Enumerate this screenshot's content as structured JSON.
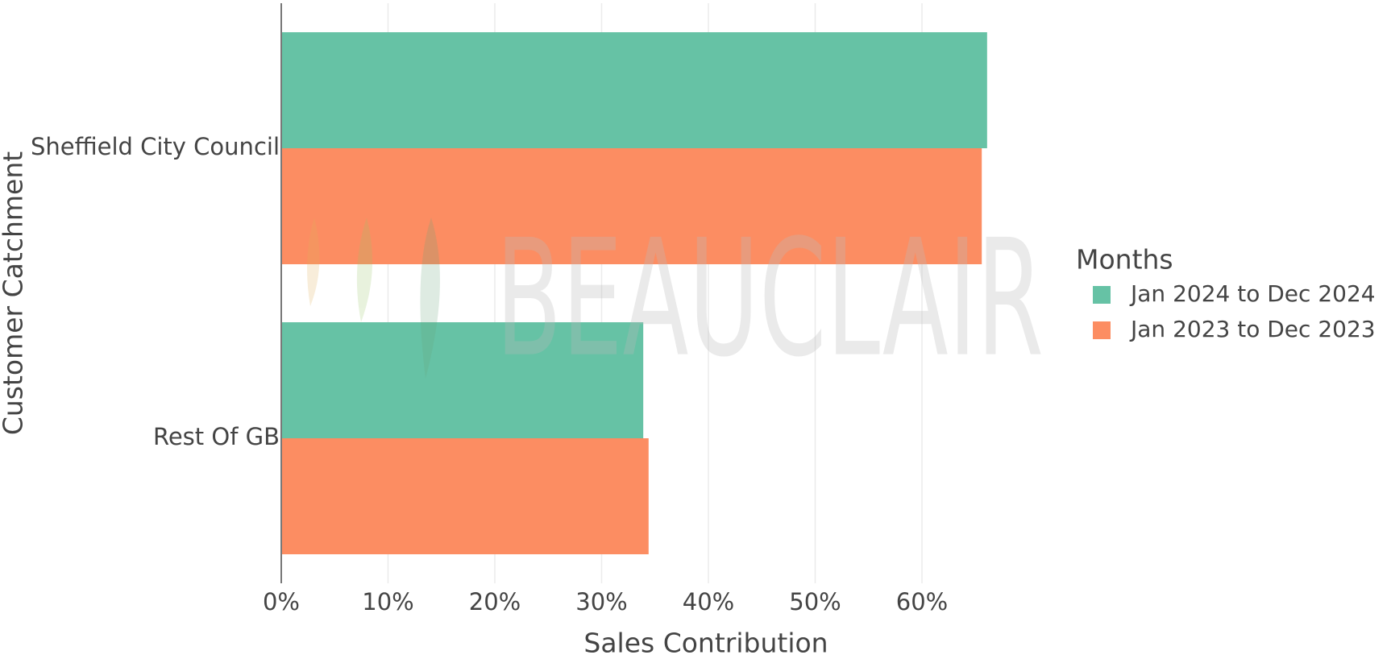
{
  "chart_data": {
    "type": "hbar",
    "watermark": "BEAUCLAIR",
    "xlabel": "Sales Contribution",
    "ylabel": "Customer Catchment",
    "categories": [
      "Sheffield City Council",
      "Rest Of GB"
    ],
    "legend_title": "Months",
    "legend": "right",
    "grid": true,
    "series": [
      {
        "name": "Jan 2024 to Dec 2024",
        "color": "#66c2a5",
        "values": [
          66.1,
          33.9
        ]
      },
      {
        "name": "Jan 2023 to Dec 2023",
        "color": "#fc8d62",
        "values": [
          65.6,
          34.4
        ]
      }
    ],
    "xlim": [
      0,
      68
    ],
    "xticks": [
      {
        "value": 0,
        "label": "0%"
      },
      {
        "value": 10,
        "label": "10%"
      },
      {
        "value": 20,
        "label": "20%"
      },
      {
        "value": 30,
        "label": "30%"
      },
      {
        "value": 40,
        "label": "40%"
      },
      {
        "value": 50,
        "label": "50%"
      },
      {
        "value": 60,
        "label": "60%"
      }
    ]
  }
}
